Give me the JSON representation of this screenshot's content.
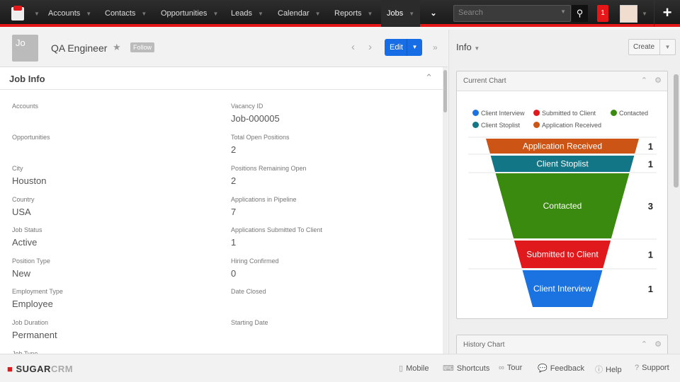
{
  "nav": {
    "items": [
      "Accounts",
      "Contacts",
      "Opportunities",
      "Leads",
      "Calendar",
      "Reports",
      "Jobs"
    ],
    "active": "Jobs",
    "search_placeholder": "Search",
    "notifications": "1"
  },
  "header": {
    "avatar_text": "Jo",
    "title": "QA Engineer",
    "follow": "Follow",
    "edit": "Edit"
  },
  "section": {
    "title": "Job Info"
  },
  "fields_left": [
    {
      "label": "Accounts",
      "value": ""
    },
    {
      "label": "Opportunities",
      "value": ""
    },
    {
      "label": "City",
      "value": "Houston"
    },
    {
      "label": "Country",
      "value": "USA"
    },
    {
      "label": "Job Status",
      "value": "Active"
    },
    {
      "label": "Position Type",
      "value": "New"
    },
    {
      "label": "Employment Type",
      "value": "Employee"
    },
    {
      "label": "Job Duration",
      "value": "Permanent"
    },
    {
      "label": "Job Type",
      "value": ""
    }
  ],
  "fields_right": [
    {
      "label": "Vacancy ID",
      "value": "Job-000005"
    },
    {
      "label": "Total Open Positions",
      "value": "2"
    },
    {
      "label": "Positions Remaining Open",
      "value": "2"
    },
    {
      "label": "Applications in Pipeline",
      "value": "7"
    },
    {
      "label": "Applications Submitted To Client",
      "value": "1"
    },
    {
      "label": "Hiring Confirmed",
      "value": "0"
    },
    {
      "label": "Date Closed",
      "value": ""
    },
    {
      "label": "Starting Date",
      "value": ""
    }
  ],
  "right": {
    "title": "Info",
    "create": "Create",
    "dashlets": [
      "Current Chart",
      "History Chart"
    ]
  },
  "chart_data": {
    "type": "funnel",
    "legend": [
      {
        "name": "Client Interview",
        "color": "#1a73e0"
      },
      {
        "name": "Submitted to Client",
        "color": "#e0191d"
      },
      {
        "name": "Contacted",
        "color": "#3a8a10"
      },
      {
        "name": "Client Stoplist",
        "color": "#127686"
      },
      {
        "name": "Application Received",
        "color": "#cc5516"
      }
    ],
    "stages": [
      {
        "name": "Application Received",
        "value": 1,
        "color": "#cc5516"
      },
      {
        "name": "Client Stoplist",
        "value": 1,
        "color": "#127686"
      },
      {
        "name": "Contacted",
        "value": 3,
        "color": "#3a8a10"
      },
      {
        "name": "Submitted to Client",
        "value": 1,
        "color": "#e0191d"
      },
      {
        "name": "Client Interview",
        "value": 1,
        "color": "#1a73e0"
      }
    ]
  },
  "footer": {
    "brand": "SUGAR",
    "brand2": "CRM",
    "links": [
      "Mobile",
      "Shortcuts",
      "Tour",
      "Feedback",
      "Help",
      "Support"
    ]
  }
}
